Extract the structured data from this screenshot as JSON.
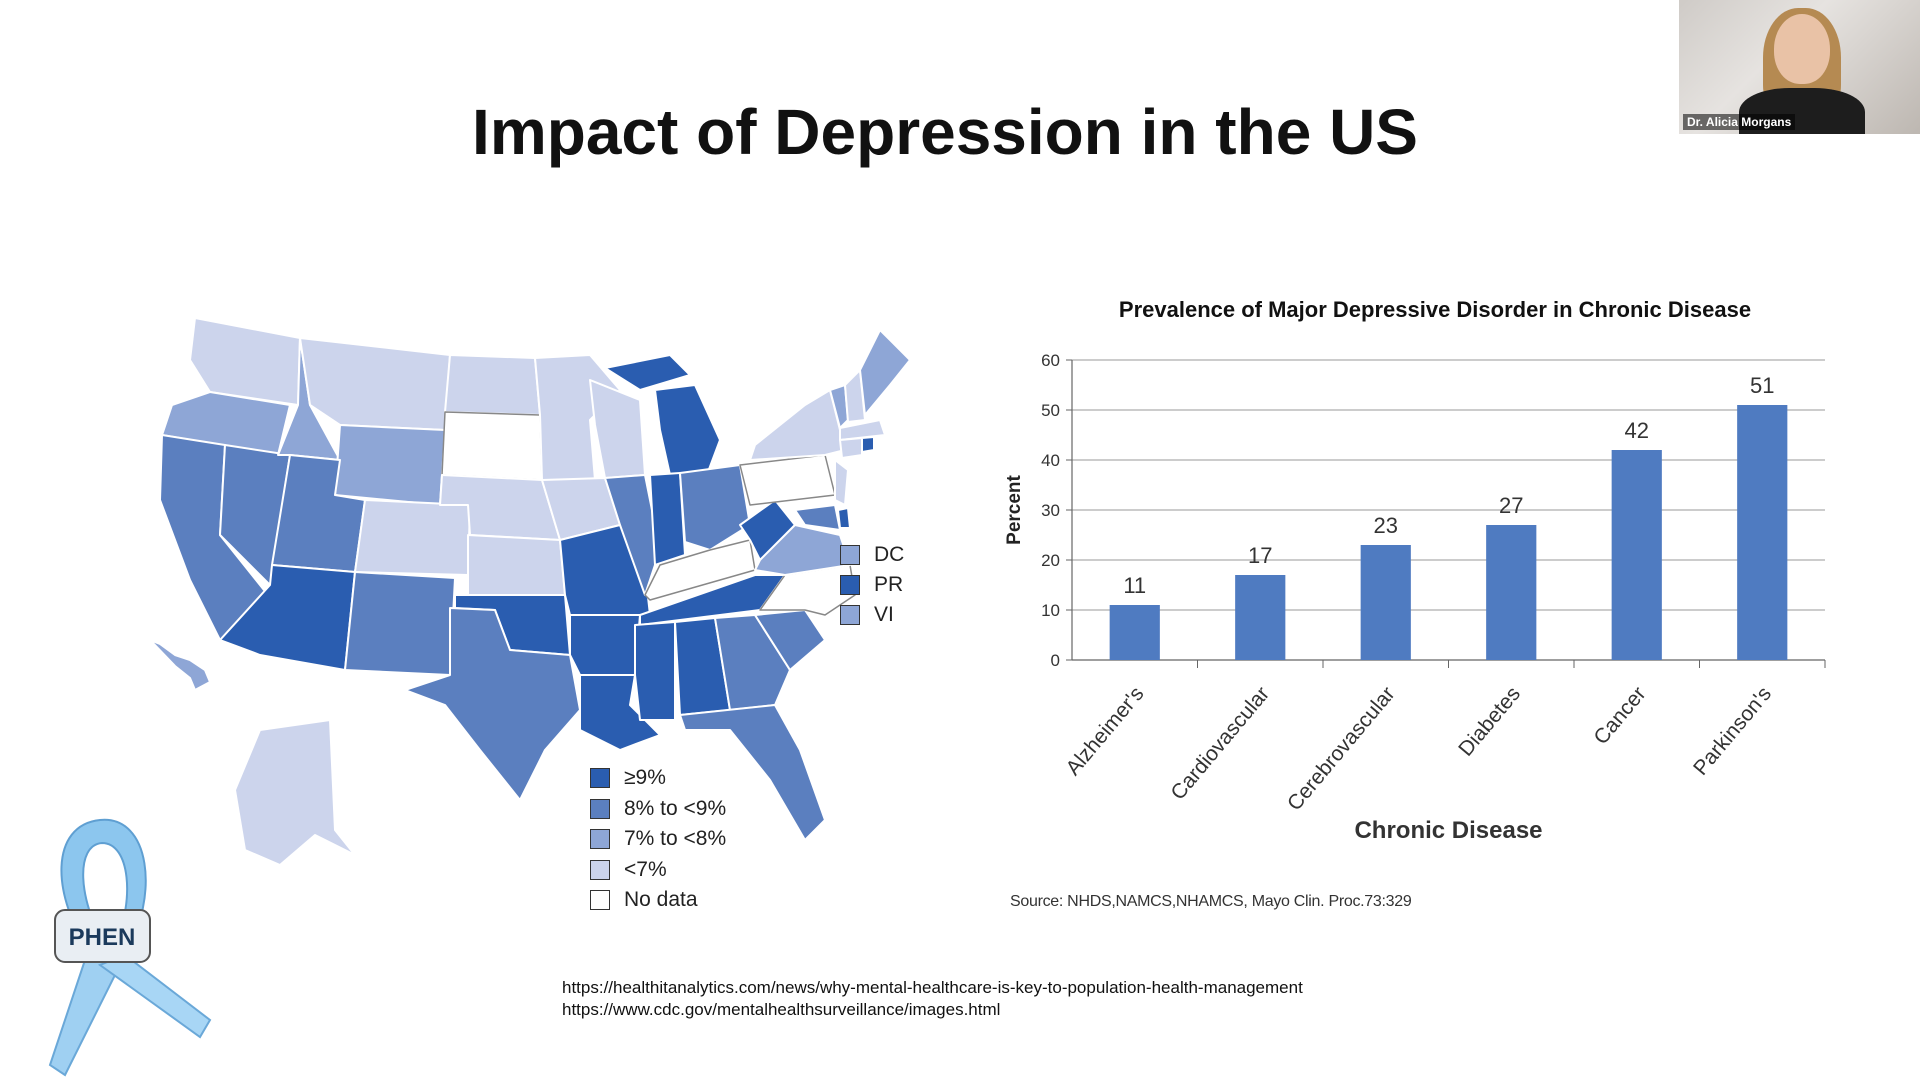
{
  "slide": {
    "title": "Impact of Depression in the US",
    "references": [
      "https://healthitanalytics.com/news/why-mental-healthcare-is-key-to-population-health-management",
      "https://www.cdc.gov/mentalhealthsurveillance/images.html"
    ],
    "logo_text": "PHEN"
  },
  "video": {
    "speaker_name": "Dr. Alicia Morgans"
  },
  "map": {
    "legend": [
      {
        "label": "≥9%",
        "color": "#2a5db0"
      },
      {
        "label": "8% to <9%",
        "color": "#5b7fbf"
      },
      {
        "label": "7% to <8%",
        "color": "#8ea6d6"
      },
      {
        "label": "<7%",
        "color": "#ccd4ec"
      },
      {
        "label": "No data",
        "color": "#ffffff"
      }
    ],
    "territories": [
      {
        "label": "DC",
        "color": "#8ea6d6"
      },
      {
        "label": "PR",
        "color": "#2a5db0"
      },
      {
        "label": "VI",
        "color": "#8ea6d6"
      }
    ]
  },
  "chart_data": {
    "type": "bar",
    "title": "Prevalence of Major Depressive Disorder in Chronic Disease",
    "xlabel": "Chronic Disease",
    "ylabel": "Percent",
    "categories": [
      "Alzheimer's",
      "Cardiovascular",
      "Cerebrovascular",
      "Diabetes",
      "Cancer",
      "Parkinson's"
    ],
    "values": [
      11,
      17,
      23,
      27,
      42,
      51
    ],
    "ylim": [
      0,
      60
    ],
    "yticks": [
      0,
      10,
      20,
      30,
      40,
      50,
      60
    ],
    "grid": true,
    "bar_color": "#4f7bc1",
    "source": "Source: NHDS,NAMCS,NHAMCS, Mayo Clin. Proc.73:329"
  }
}
